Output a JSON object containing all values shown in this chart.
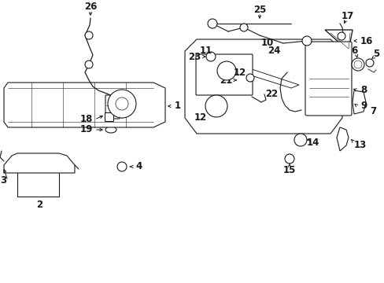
{
  "background_color": "#ffffff",
  "line_color": "#1a1a1a",
  "figsize": [
    4.89,
    3.6
  ],
  "dpi": 100,
  "label_fontsize": 8.5,
  "label_fontsize_small": 7.5
}
